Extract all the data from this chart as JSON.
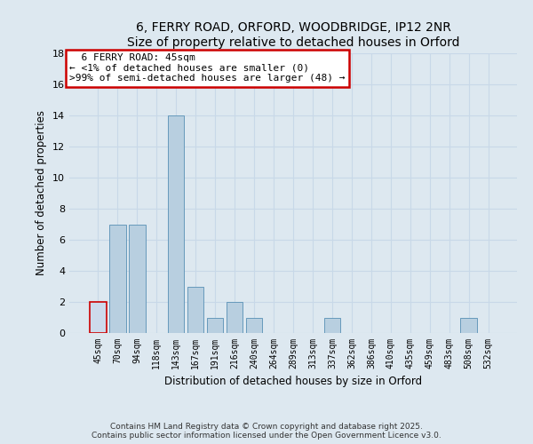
{
  "title": "6, FERRY ROAD, ORFORD, WOODBRIDGE, IP12 2NR",
  "subtitle": "Size of property relative to detached houses in Orford",
  "xlabel": "Distribution of detached houses by size in Orford",
  "ylabel": "Number of detached properties",
  "categories": [
    "45sqm",
    "70sqm",
    "94sqm",
    "118sqm",
    "143sqm",
    "167sqm",
    "191sqm",
    "216sqm",
    "240sqm",
    "264sqm",
    "289sqm",
    "313sqm",
    "337sqm",
    "362sqm",
    "386sqm",
    "410sqm",
    "435sqm",
    "459sqm",
    "483sqm",
    "508sqm",
    "532sqm"
  ],
  "values": [
    2,
    7,
    7,
    0,
    14,
    3,
    1,
    2,
    1,
    0,
    0,
    0,
    1,
    0,
    0,
    0,
    0,
    0,
    0,
    1,
    0
  ],
  "highlight_index": 0,
  "highlight_color": "#ccdaeb",
  "bar_color": "#b8cfe0",
  "highlight_edge_color": "#cc0000",
  "normal_edge_color": "#6699bb",
  "ylim": [
    0,
    18
  ],
  "yticks": [
    0,
    2,
    4,
    6,
    8,
    10,
    12,
    14,
    16,
    18
  ],
  "annotation_title": "6 FERRY ROAD: 45sqm",
  "annotation_line1": "← <1% of detached houses are smaller (0)",
  "annotation_line2": ">99% of semi-detached houses are larger (48) →",
  "footer_line1": "Contains HM Land Registry data © Crown copyright and database right 2025.",
  "footer_line2": "Contains public sector information licensed under the Open Government Licence v3.0.",
  "bg_color": "#dde8f0",
  "annotation_box_color": "#ffffff",
  "annotation_box_edge_color": "#cc0000"
}
